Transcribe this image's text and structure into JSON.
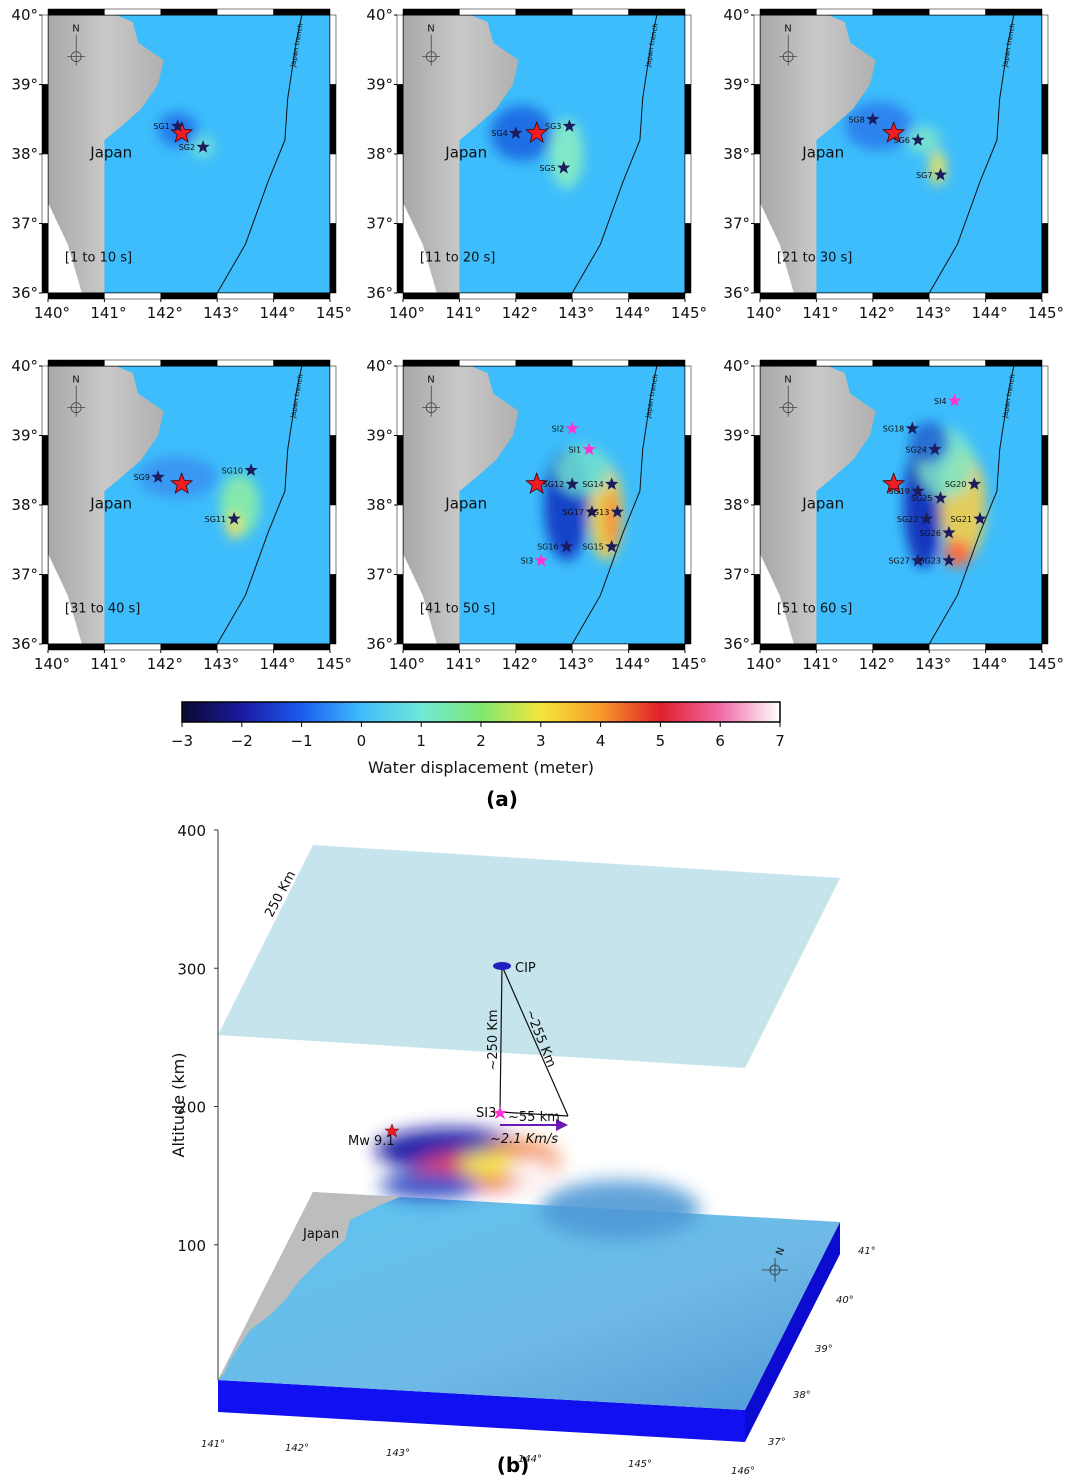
{
  "panel_a": {
    "xlim": [
      140,
      145
    ],
    "ylim": [
      36,
      40
    ],
    "xticks": [
      {
        "value": 140,
        "label": "140°"
      },
      {
        "value": 141,
        "label": "141°"
      },
      {
        "value": 142,
        "label": "142°"
      },
      {
        "value": 143,
        "label": "143°"
      },
      {
        "value": 144,
        "label": "144°"
      },
      {
        "value": 145,
        "label": "145°"
      }
    ],
    "yticks": [
      {
        "value": 36,
        "label": "36°"
      },
      {
        "value": 37,
        "label": "37°"
      },
      {
        "value": 38,
        "label": "38°"
      },
      {
        "value": 39,
        "label": "39°"
      },
      {
        "value": 40,
        "label": "40°"
      }
    ],
    "north": "N",
    "land_label": "Japan",
    "trench_label": "Japan trench",
    "land_color": "#b9b9b9",
    "ocean_color": "#3dbdfb",
    "epicenter": {
      "lon": 142.37,
      "lat": 38.3,
      "color": "#ee1c24"
    },
    "panels": [
      {
        "time": "[1 to 10 s]",
        "stations": [
          {
            "name": "SG1",
            "lon": 142.3,
            "lat": 38.4,
            "color": "#1c1c5c"
          },
          {
            "name": "SG2",
            "lon": 142.75,
            "lat": 38.1,
            "color": "#1c1c5c"
          }
        ]
      },
      {
        "time": "[11 to 20 s]",
        "stations": [
          {
            "name": "SG4",
            "lon": 142.0,
            "lat": 38.3,
            "color": "#1c1c5c"
          },
          {
            "name": "SG3",
            "lon": 142.95,
            "lat": 38.4,
            "color": "#1c1c5c"
          },
          {
            "name": "SG5",
            "lon": 142.85,
            "lat": 37.8,
            "color": "#1c1c5c"
          }
        ]
      },
      {
        "time": "[21 to 30 s]",
        "stations": [
          {
            "name": "SG8",
            "lon": 142.0,
            "lat": 38.5,
            "color": "#1c1c5c"
          },
          {
            "name": "SG6",
            "lon": 142.8,
            "lat": 38.2,
            "color": "#1c1c5c"
          },
          {
            "name": "SG7",
            "lon": 143.2,
            "lat": 37.7,
            "color": "#1c1c5c"
          }
        ]
      },
      {
        "time": "[31 to 40 s]",
        "stations": [
          {
            "name": "SG9",
            "lon": 141.95,
            "lat": 38.4,
            "color": "#1c1c5c"
          },
          {
            "name": "SG10",
            "lon": 143.6,
            "lat": 38.5,
            "color": "#1c1c5c"
          },
          {
            "name": "SG11",
            "lon": 143.3,
            "lat": 37.8,
            "color": "#1c1c5c"
          }
        ]
      },
      {
        "time": "[41 to 50 s]",
        "stations": [
          {
            "name": "SI2",
            "lon": 143.0,
            "lat": 39.1,
            "color": "#ff33d0"
          },
          {
            "name": "SI1",
            "lon": 143.3,
            "lat": 38.8,
            "color": "#ff33d0"
          },
          {
            "name": "SG12",
            "lon": 143.0,
            "lat": 38.3,
            "color": "#1c1c5c"
          },
          {
            "name": "SG14",
            "lon": 143.7,
            "lat": 38.3,
            "color": "#1c1c5c"
          },
          {
            "name": "SG17",
            "lon": 143.35,
            "lat": 37.9,
            "color": "#1c1c5c"
          },
          {
            "name": "SG13",
            "lon": 143.8,
            "lat": 37.9,
            "color": "#1c1c5c"
          },
          {
            "name": "SG16",
            "lon": 142.9,
            "lat": 37.4,
            "color": "#1c1c5c"
          },
          {
            "name": "SG15",
            "lon": 143.7,
            "lat": 37.4,
            "color": "#1c1c5c"
          },
          {
            "name": "SI3",
            "lon": 142.45,
            "lat": 37.2,
            "color": "#ff33d0"
          }
        ]
      },
      {
        "time": "[51 to 60 s]",
        "stations": [
          {
            "name": "SI4",
            "lon": 143.45,
            "lat": 39.5,
            "color": "#ff33d0"
          },
          {
            "name": "SG18",
            "lon": 142.7,
            "lat": 39.1,
            "color": "#1c1c5c"
          },
          {
            "name": "SG24",
            "lon": 143.1,
            "lat": 38.8,
            "color": "#1c1c5c"
          },
          {
            "name": "SG19",
            "lon": 142.8,
            "lat": 38.2,
            "color": "#1c1c5c"
          },
          {
            "name": "SG25",
            "lon": 143.2,
            "lat": 38.1,
            "color": "#1c1c5c"
          },
          {
            "name": "SG20",
            "lon": 143.8,
            "lat": 38.3,
            "color": "#1c1c5c"
          },
          {
            "name": "SG22",
            "lon": 142.95,
            "lat": 37.8,
            "color": "#1c1c5c"
          },
          {
            "name": "SG21",
            "lon": 143.9,
            "lat": 37.8,
            "color": "#1c1c5c"
          },
          {
            "name": "SG26",
            "lon": 143.35,
            "lat": 37.6,
            "color": "#1c1c5c"
          },
          {
            "name": "SG27",
            "lon": 142.8,
            "lat": 37.2,
            "color": "#1c1c5c"
          },
          {
            "name": "SG23",
            "lon": 143.35,
            "lat": 37.2,
            "color": "#1c1c5c"
          }
        ]
      }
    ],
    "colorbar": {
      "lim": [
        -3,
        7
      ],
      "ticks": [
        {
          "value": -3,
          "label": "−3"
        },
        {
          "value": -2,
          "label": "−2"
        },
        {
          "value": -1,
          "label": "−1"
        },
        0,
        1,
        2,
        3,
        4,
        5,
        6,
        7
      ],
      "colors": [
        "#0a0a30",
        "#1a1aa0",
        "#1b5cf0",
        "#3fbdfb",
        "#6fe8d8",
        "#7ee870",
        "#f5e63c",
        "#f79a2a",
        "#e0202a",
        "#f06aa8",
        "#ffffff"
      ],
      "label": "Water displacement (meter)"
    },
    "caption": "(a)"
  },
  "panel_b": {
    "altitude_label": "Altitude (km)",
    "altitude_lim": [
      0,
      400
    ],
    "altitude_ticks": [
      100,
      200,
      300,
      400
    ],
    "plane_label": "250 Km",
    "cip": "CIP",
    "vertical_label": "~250 Km",
    "slant_label": "~255 Km",
    "land_label": "Japan",
    "station": "SI3",
    "distance_label": "~55 km",
    "speed_label": "~2.1 Km/s",
    "quake_label": "Mw 9.1",
    "lon_labels": [
      "141°",
      "142°",
      "143°",
      "144°",
      "145°",
      "146°"
    ],
    "lat_labels": [
      "37°",
      "38°",
      "39°",
      "40°",
      "41°"
    ],
    "north": "N",
    "caption": "(b)"
  }
}
